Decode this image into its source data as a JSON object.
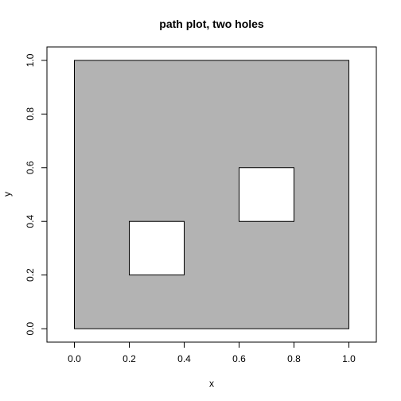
{
  "chart_data": {
    "type": "area",
    "title": "path plot, two holes",
    "xlabel": "x",
    "ylabel": "y",
    "xlim": [
      -0.1,
      1.1
    ],
    "ylim": [
      -0.05,
      1.05
    ],
    "x_ticks": [
      0.0,
      0.2,
      0.4,
      0.6,
      0.8,
      1.0
    ],
    "x_tick_labels": [
      "0.0",
      "0.2",
      "0.4",
      "0.6",
      "0.8",
      "1.0"
    ],
    "y_ticks": [
      0.0,
      0.2,
      0.4,
      0.6,
      0.8,
      1.0
    ],
    "y_tick_labels": [
      "0.0",
      "0.2",
      "0.4",
      "0.6",
      "0.8",
      "1.0"
    ],
    "grid": false,
    "fill_color": "#b3b3b3",
    "hole_color": "#ffffff",
    "outer": {
      "x": [
        0,
        1,
        1,
        0
      ],
      "y": [
        0,
        0,
        1,
        1
      ]
    },
    "holes": [
      {
        "x": [
          0.2,
          0.4,
          0.4,
          0.2
        ],
        "y": [
          0.2,
          0.2,
          0.4,
          0.4
        ]
      },
      {
        "x": [
          0.6,
          0.8,
          0.8,
          0.6
        ],
        "y": [
          0.4,
          0.4,
          0.6,
          0.6
        ]
      }
    ]
  }
}
